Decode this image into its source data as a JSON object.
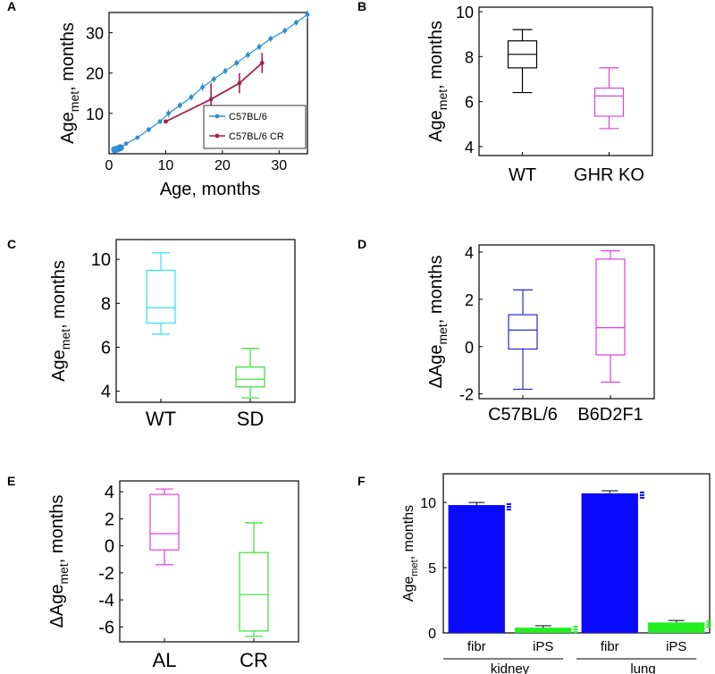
{
  "colors": {
    "c57": "#2b8fd6",
    "c57cr": "#a3244d",
    "wt_b": "#000000",
    "ghrko": "#e040e0",
    "wt_c": "#33e0f0",
    "sd": "#33e033",
    "d_c57": "#2a2ad0",
    "d_b6": "#e040e0",
    "al": "#e040e0",
    "cr": "#33e033",
    "fibr": "#0a0aff",
    "ips": "#22ee22"
  },
  "axis_text": {
    "age_met": "Age",
    "sub_met": "met",
    "unit": ", months",
    "delta_age_met": "ΔAge",
    "age_months": "Age, months"
  },
  "chart_data": [
    {
      "panel": "A",
      "type": "line",
      "xlabel": "Age, months",
      "ylabel": "Age_met, months",
      "xlim": [
        0,
        35
      ],
      "ylim": [
        0,
        35
      ],
      "xticks": [
        0,
        10,
        20,
        30
      ],
      "yticks": [
        10,
        20,
        30
      ],
      "legend": "bottom-right",
      "series": [
        {
          "name": "C57BL/6",
          "x": [
            1.0,
            1.5,
            2.0,
            3.0,
            5.0,
            7.0,
            9.0,
            10.5,
            12.5,
            14.5,
            16.5,
            18.5,
            20.5,
            22.5,
            24.5,
            26.5,
            28.5,
            31.0,
            33.0,
            35.0
          ],
          "y": [
            1.0,
            1.2,
            1.5,
            2.5,
            4.0,
            6.0,
            8.0,
            10.0,
            12.0,
            14.0,
            16.5,
            18.5,
            20.5,
            22.5,
            24.5,
            26.5,
            28.5,
            30.5,
            32.5,
            34.5
          ],
          "err": [
            0,
            0,
            0,
            0.4,
            0.4,
            0.6,
            0.6,
            1.0,
            0.8,
            0.8,
            1.0,
            0.8,
            0.8,
            0.8,
            0.8,
            0.8,
            0.8,
            0.8,
            0.8,
            1.0
          ]
        },
        {
          "name": "C57BL/6 CR",
          "x": [
            10.0,
            18.0,
            23.0,
            27.0
          ],
          "y": [
            8.0,
            13.5,
            17.5,
            22.5
          ],
          "err": [
            0.5,
            4.0,
            2.5,
            2.5
          ]
        }
      ]
    },
    {
      "panel": "B",
      "type": "box",
      "ylabel": "Age_met, months",
      "ylim": [
        3.6,
        10.2
      ],
      "yticks": [
        4,
        6,
        8,
        10
      ],
      "categories": [
        "WT",
        "GHR KO"
      ],
      "boxes": [
        {
          "whislo": 6.4,
          "q1": 7.5,
          "med": 8.1,
          "q3": 8.7,
          "whishi": 9.2,
          "color_key": "wt_b"
        },
        {
          "whislo": 4.8,
          "q1": 5.35,
          "med": 6.25,
          "q3": 6.6,
          "whishi": 7.5,
          "color_key": "ghrko"
        }
      ]
    },
    {
      "panel": "C",
      "type": "box",
      "ylabel": "Age_met, months",
      "ylim": [
        3.5,
        10.9
      ],
      "yticks": [
        4,
        6,
        8,
        10
      ],
      "categories": [
        "WT",
        "SD"
      ],
      "boxes": [
        {
          "whislo": 6.6,
          "q1": 7.1,
          "med": 7.8,
          "q3": 9.5,
          "whishi": 10.3,
          "color_key": "wt_c"
        },
        {
          "whislo": 3.7,
          "q1": 4.2,
          "med": 4.55,
          "q3": 5.1,
          "whishi": 5.95,
          "color_key": "sd"
        }
      ]
    },
    {
      "panel": "D",
      "type": "box",
      "ylabel": "ΔAge_met, months",
      "ylim": [
        -2.2,
        4.3
      ],
      "yticks": [
        -2,
        0,
        2,
        4
      ],
      "categories": [
        "C57BL/6",
        "B6D2F1"
      ],
      "boxes": [
        {
          "whislo": -1.8,
          "q1": -0.1,
          "med": 0.7,
          "q3": 1.35,
          "whishi": 2.4,
          "color_key": "d_c57"
        },
        {
          "whislo": -1.5,
          "q1": -0.35,
          "med": 0.8,
          "q3": 3.7,
          "whishi": 4.05,
          "color_key": "d_b6"
        }
      ]
    },
    {
      "panel": "E",
      "type": "box",
      "ylabel": "ΔAge_met, months",
      "ylim": [
        -7.1,
        4.8
      ],
      "yticks": [
        -6,
        -4,
        -2,
        0,
        2,
        4
      ],
      "categories": [
        "AL",
        "CR"
      ],
      "boxes": [
        {
          "whislo": -1.4,
          "q1": -0.3,
          "med": 0.9,
          "q3": 3.8,
          "whishi": 4.2,
          "color_key": "al"
        },
        {
          "whislo": -6.7,
          "q1": -6.3,
          "med": -3.6,
          "q3": -0.5,
          "whishi": 1.7,
          "color_key": "cr"
        }
      ]
    },
    {
      "panel": "F",
      "type": "bar",
      "ylabel": "Age_met, months",
      "ylim": [
        0,
        12.2
      ],
      "yticks": [
        0,
        5,
        10
      ],
      "categories": [
        "fibr",
        "iPS",
        "fibr",
        "iPS"
      ],
      "groups": [
        "kidney",
        "lung"
      ],
      "values": [
        9.8,
        0.4,
        10.7,
        0.8
      ],
      "errors": [
        0.2,
        0.15,
        0.2,
        0.15
      ],
      "color_keys": [
        "fibr",
        "ips",
        "fibr",
        "ips"
      ]
    }
  ],
  "panel_labels": [
    "A",
    "B",
    "C",
    "D",
    "E",
    "F"
  ]
}
